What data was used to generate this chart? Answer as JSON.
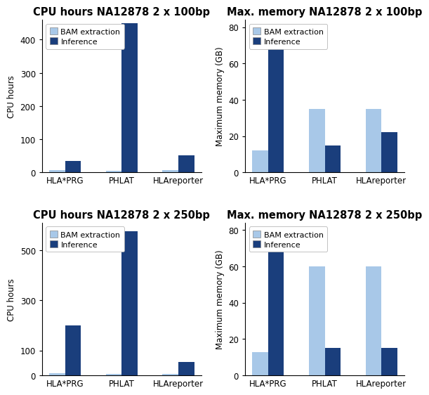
{
  "plots": [
    {
      "title": "CPU hours NA12878 2 x 100bp",
      "ylabel": "CPU hours",
      "ylim": [
        0,
        460
      ],
      "yticks": [
        0,
        100,
        200,
        300,
        400
      ],
      "categories": [
        "HLA*PRG",
        "PHLAT",
        "HLAreporter"
      ],
      "bam_values": [
        8,
        5,
        7
      ],
      "inf_values": [
        35,
        450,
        52
      ]
    },
    {
      "title": "Max. memory NA12878 2 x 100bp",
      "ylabel": "Maximum memory (GB)",
      "ylim": [
        0,
        84
      ],
      "yticks": [
        0,
        20,
        40,
        60,
        80
      ],
      "categories": [
        "HLA*PRG",
        "PHLAT",
        "HLAreporter"
      ],
      "bam_values": [
        12,
        35,
        35
      ],
      "inf_values": [
        75,
        15,
        22
      ]
    },
    {
      "title": "CPU hours NA12878 2 x 250bp",
      "ylabel": "CPU hours",
      "ylim": [
        0,
        610
      ],
      "yticks": [
        0,
        100,
        300,
        500
      ],
      "categories": [
        "HLA*PRG",
        "PHLAT",
        "HLAreporter"
      ],
      "bam_values": [
        10,
        5,
        5
      ],
      "inf_values": [
        200,
        575,
        55
      ]
    },
    {
      "title": "Max. memory NA12878 2 x 250bp",
      "ylabel": "Maximum memory (GB)",
      "ylim": [
        0,
        84
      ],
      "yticks": [
        0,
        20,
        40,
        60,
        80
      ],
      "categories": [
        "HLA*PRG",
        "PHLAT",
        "HLAreporter"
      ],
      "bam_values": [
        13,
        60,
        60
      ],
      "inf_values": [
        75,
        15,
        15
      ]
    }
  ],
  "color_bam": "#A8C8E8",
  "color_inf": "#1A3E7C",
  "bar_width": 0.28,
  "background_color": "#ffffff",
  "title_fontsize": 10.5,
  "label_fontsize": 8.5,
  "tick_fontsize": 8.5,
  "legend_fontsize": 8.0
}
